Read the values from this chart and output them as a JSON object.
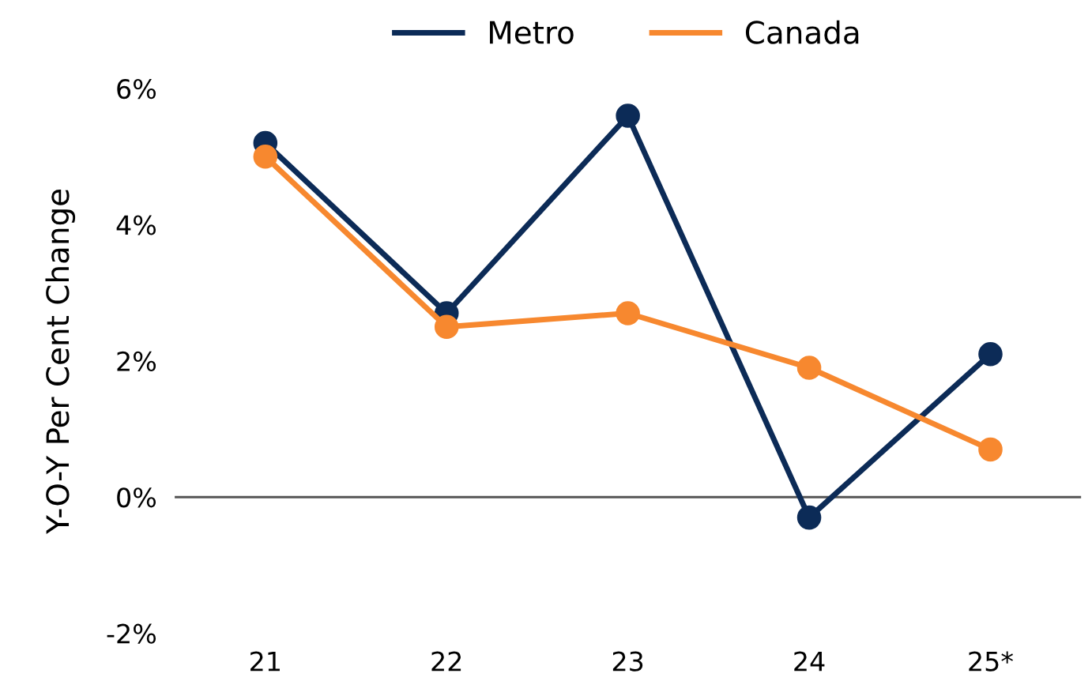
{
  "chart_data": {
    "type": "line",
    "ylabel": "Y-O-Y Per Cent Change",
    "categories": [
      "21",
      "22",
      "23",
      "24",
      "25*"
    ],
    "series": [
      {
        "name": "Metro",
        "color": "#0c2b57",
        "values": [
          5.2,
          2.7,
          5.6,
          -0.3,
          2.1
        ]
      },
      {
        "name": "Canada",
        "color": "#f7882f",
        "values": [
          5.0,
          2.5,
          2.7,
          1.9,
          0.7
        ]
      }
    ],
    "ylim": [
      -2,
      6
    ],
    "yticks": [
      {
        "value": -2,
        "label": "-2%"
      },
      {
        "value": 0,
        "label": "0%"
      },
      {
        "value": 2,
        "label": "2%"
      },
      {
        "value": 4,
        "label": "4%"
      },
      {
        "value": 6,
        "label": "6%"
      }
    ],
    "ref_lines": [
      {
        "axis": "y",
        "value": 0,
        "color": "#555555"
      }
    ],
    "grid": false,
    "legend": "top",
    "marker": "circle",
    "line_style": "solid"
  }
}
